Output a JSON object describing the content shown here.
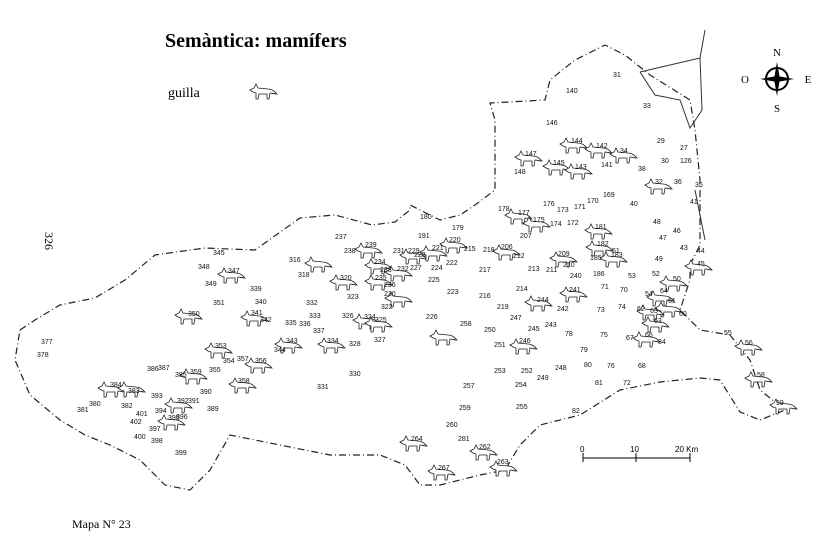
{
  "title": "Semàntica: mamífers",
  "legend": {
    "label": "guilla"
  },
  "compass": {
    "n": "N",
    "s": "S",
    "e": "E",
    "w": "O"
  },
  "side_number": "326",
  "scale": {
    "ticks": [
      "0",
      "10",
      "20 Km"
    ]
  },
  "footer": "Mapa N° 23",
  "localities": [
    "31",
    "140",
    "33",
    "146",
    "144",
    "142",
    "34",
    "29",
    "27",
    "147",
    "145",
    "143",
    "141",
    "38",
    "30",
    "126",
    "148",
    "32",
    "36",
    "35",
    "176",
    "173",
    "171",
    "170",
    "169",
    "40",
    "41",
    "178",
    "177",
    "175",
    "174",
    "172",
    "180",
    "179",
    "207",
    "181",
    "48",
    "47",
    "46",
    "237",
    "231",
    "191",
    "220",
    "218",
    "206",
    "212",
    "209",
    "182",
    "183",
    "44",
    "43",
    "238",
    "239",
    "229",
    "228",
    "221",
    "215",
    "210",
    "185",
    "186",
    "51",
    "45",
    "49",
    "345",
    "348",
    "347",
    "316",
    "234",
    "233",
    "232",
    "227",
    "224",
    "222",
    "217",
    "213",
    "211",
    "53",
    "52",
    "50",
    "349",
    "339",
    "318",
    "320",
    "235",
    "236",
    "225",
    "214",
    "244",
    "241",
    "240",
    "71",
    "70",
    "54",
    "64",
    "61",
    "230",
    "223",
    "216",
    "351",
    "340",
    "332",
    "323",
    "219",
    "242",
    "73",
    "74",
    "62",
    "63",
    "65",
    "350",
    "341",
    "342",
    "333",
    "326",
    "324",
    "322",
    "226",
    "247",
    "243",
    "335",
    "336",
    "337",
    "325",
    "258",
    "250",
    "245",
    "78",
    "75",
    "67",
    "66",
    "60",
    "343",
    "344",
    "334",
    "328",
    "327",
    "251",
    "246",
    "79",
    "84",
    "377",
    "378",
    "353",
    "354",
    "357",
    "356",
    "55",
    "56",
    "386",
    "387",
    "385",
    "359",
    "355",
    "358",
    "330",
    "253",
    "252",
    "248",
    "80",
    "76",
    "68",
    "58",
    "384",
    "383",
    "390",
    "331",
    "257",
    "254",
    "249",
    "81",
    "72",
    "380",
    "382",
    "393",
    "392",
    "391",
    "389",
    "59",
    "381",
    "394",
    "395",
    "396",
    "255",
    "82",
    "402",
    "401",
    "397",
    "259",
    "260",
    "400",
    "398",
    "399",
    "281",
    "264",
    "262",
    "263",
    "267"
  ]
}
